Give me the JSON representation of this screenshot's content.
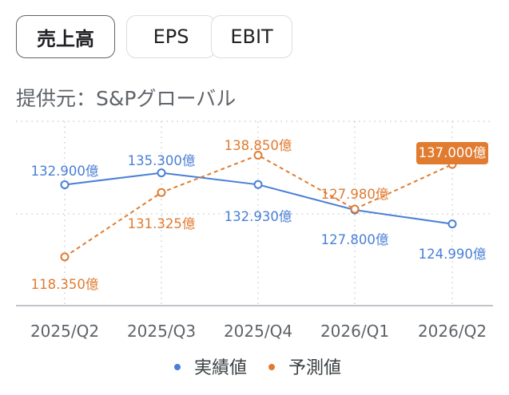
{
  "tabs": [
    {
      "label": "売上高",
      "active": true
    },
    {
      "label": "EPS",
      "active": false
    },
    {
      "label": "EBIT",
      "active": false
    }
  ],
  "source": "提供元：S&Pグローバル",
  "colors": {
    "actual": "#4a7fd6",
    "forecast": "#e07b30",
    "grid": "#d0d0d0",
    "axis": "#9aa0a6",
    "text": "#5f6368"
  },
  "chart_data": {
    "type": "line",
    "categories": [
      "2025/Q2",
      "2025/Q3",
      "2025/Q4",
      "2026/Q1",
      "2026/Q2"
    ],
    "series": [
      {
        "name": "実績値",
        "values": [
          132.9,
          135.3,
          132.93,
          127.8,
          124.99
        ],
        "labels": [
          "132.900億",
          "135.300億",
          "132.930億",
          "127.800億",
          "124.990億"
        ],
        "style": "solid"
      },
      {
        "name": "予測値",
        "values": [
          118.35,
          131.325,
          138.85,
          127.98,
          137.0
        ],
        "labels": [
          "118.350億",
          "131.325億",
          "138.850億",
          "127.980億",
          "137.000億"
        ],
        "style": "dashed",
        "highlight_last": true
      }
    ],
    "ylim": [
      108.5,
      145.7
    ],
    "legend": "bottom"
  }
}
